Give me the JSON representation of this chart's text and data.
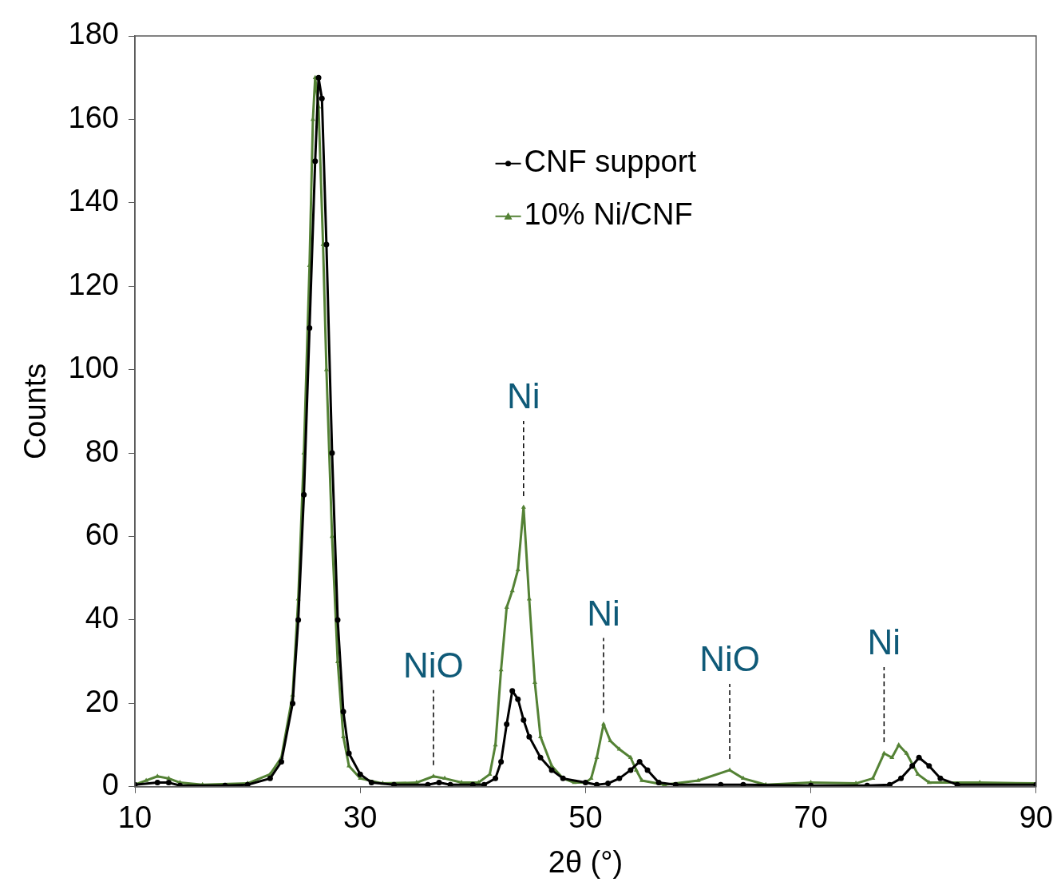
{
  "chart_data": {
    "type": "line",
    "xlabel": "2θ (°)",
    "ylabel": "Counts",
    "xlim": [
      10,
      90
    ],
    "xticks": [
      10,
      30,
      50,
      70,
      90
    ],
    "ylim": [
      0,
      180
    ],
    "yticks": [
      0,
      20,
      40,
      60,
      80,
      100,
      120,
      140,
      160,
      180
    ],
    "grid": false,
    "legend": "top",
    "line_style": "solid",
    "annotations": [
      {
        "text": "NiO",
        "x": 36.5,
        "y": 2.5
      },
      {
        "text": "Ni",
        "x": 44.5,
        "y": 67
      },
      {
        "text": "Ni",
        "x": 51.6,
        "y": 15
      },
      {
        "text": "NiO",
        "x": 62.8,
        "y": 4
      },
      {
        "text": "Ni",
        "x": 76.5,
        "y": 8
      }
    ],
    "series": [
      {
        "name": "CNF support",
        "color": "#000000",
        "marker": "circle",
        "x": [
          10,
          12,
          13,
          14,
          18,
          20,
          22,
          23,
          24,
          24.5,
          25,
          25.5,
          26,
          26.3,
          26.6,
          27,
          27.5,
          28,
          28.5,
          29,
          30,
          31,
          33,
          36,
          37,
          38,
          40,
          41,
          42,
          42.5,
          43,
          43.5,
          44,
          44.5,
          45,
          46,
          47,
          48,
          50,
          51,
          52,
          53,
          54,
          54.8,
          55.5,
          56.5,
          58,
          62,
          64,
          70,
          75,
          77,
          78,
          79,
          79.6,
          80.5,
          81.5,
          83,
          90
        ],
        "values": [
          0.5,
          1,
          1,
          0.3,
          0.3,
          0.5,
          2,
          6,
          20,
          40,
          70,
          110,
          150,
          170,
          165,
          130,
          80,
          40,
          18,
          8,
          3,
          1,
          0.5,
          0.5,
          1,
          0.5,
          0.5,
          0.5,
          2,
          6,
          15,
          23,
          21,
          16,
          12,
          7,
          4,
          2,
          1,
          0.5,
          0.8,
          2,
          4,
          6,
          4,
          1,
          0.5,
          0.5,
          0.5,
          0.3,
          0.3,
          0.5,
          2,
          5,
          7,
          5,
          2,
          0.5,
          0.5
        ]
      },
      {
        "name": "10% Ni/CNF",
        "color": "#548235",
        "marker": "triangle",
        "x": [
          10,
          11,
          12,
          13,
          14,
          16,
          20,
          22,
          23,
          24,
          24.5,
          25,
          25.5,
          25.8,
          26,
          26.3,
          26.7,
          27,
          27.5,
          28,
          28.5,
          29,
          30,
          32,
          35,
          36.5,
          37.5,
          39,
          40.5,
          41.5,
          42,
          42.5,
          43,
          43.5,
          44,
          44.5,
          45,
          45.5,
          46,
          47,
          48,
          49,
          50,
          50.5,
          51,
          51.6,
          52.2,
          53,
          54,
          54.5,
          55,
          57,
          60,
          62.8,
          64,
          66,
          70,
          74,
          75.5,
          76.5,
          77.2,
          77.8,
          78.5,
          79.5,
          80.5,
          85,
          90
        ],
        "values": [
          0.5,
          1.5,
          2.5,
          2,
          1,
          0.5,
          0.8,
          3,
          7,
          22,
          45,
          80,
          125,
          160,
          170,
          163,
          130,
          100,
          60,
          30,
          12,
          5,
          2,
          0.8,
          1,
          2.5,
          2,
          1,
          1,
          3,
          10,
          28,
          43,
          47,
          52,
          67,
          45,
          25,
          12,
          5,
          2,
          1,
          1,
          2,
          7,
          15,
          11,
          9,
          7,
          4,
          1.5,
          0.5,
          1.5,
          4,
          2,
          0.5,
          1,
          0.8,
          2,
          8,
          7,
          10,
          8,
          3,
          1,
          1,
          0.8
        ]
      }
    ]
  }
}
